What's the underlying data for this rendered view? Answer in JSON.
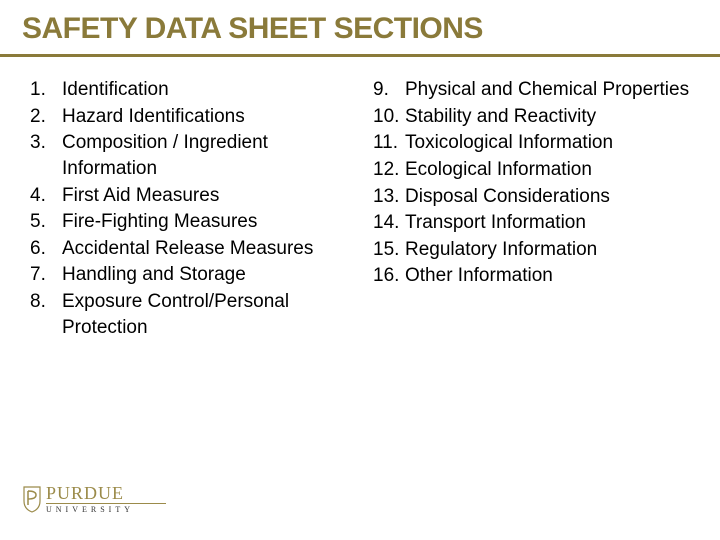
{
  "title": "SAFETY DATA SHEET SECTIONS",
  "columns": {
    "left": {
      "start": 1,
      "items": [
        "Identification",
        "Hazard Identifications",
        "Composition / Ingredient Information",
        "First Aid Measures",
        "Fire-Fighting Measures",
        "Accidental Release Measures",
        "Handling and Storage",
        "Exposure Control/Personal Protection"
      ]
    },
    "right": {
      "start": 9,
      "items": [
        "Physical and Chemical Properties",
        "Stability and Reactivity",
        "Toxicological Information",
        "Ecological Information",
        "Disposal Considerations",
        "Transport Information",
        "Regulatory Information",
        "Other Information"
      ]
    }
  },
  "logo": {
    "top": "PURDUE",
    "bottom": "UNIVERSITY"
  },
  "colors": {
    "accent": "#8a7a3a",
    "text": "#000000",
    "logo_gold": "#9b8b4a",
    "background": "#ffffff"
  },
  "typography": {
    "title_fontsize": 30,
    "list_fontsize": 19,
    "title_weight": 900
  }
}
